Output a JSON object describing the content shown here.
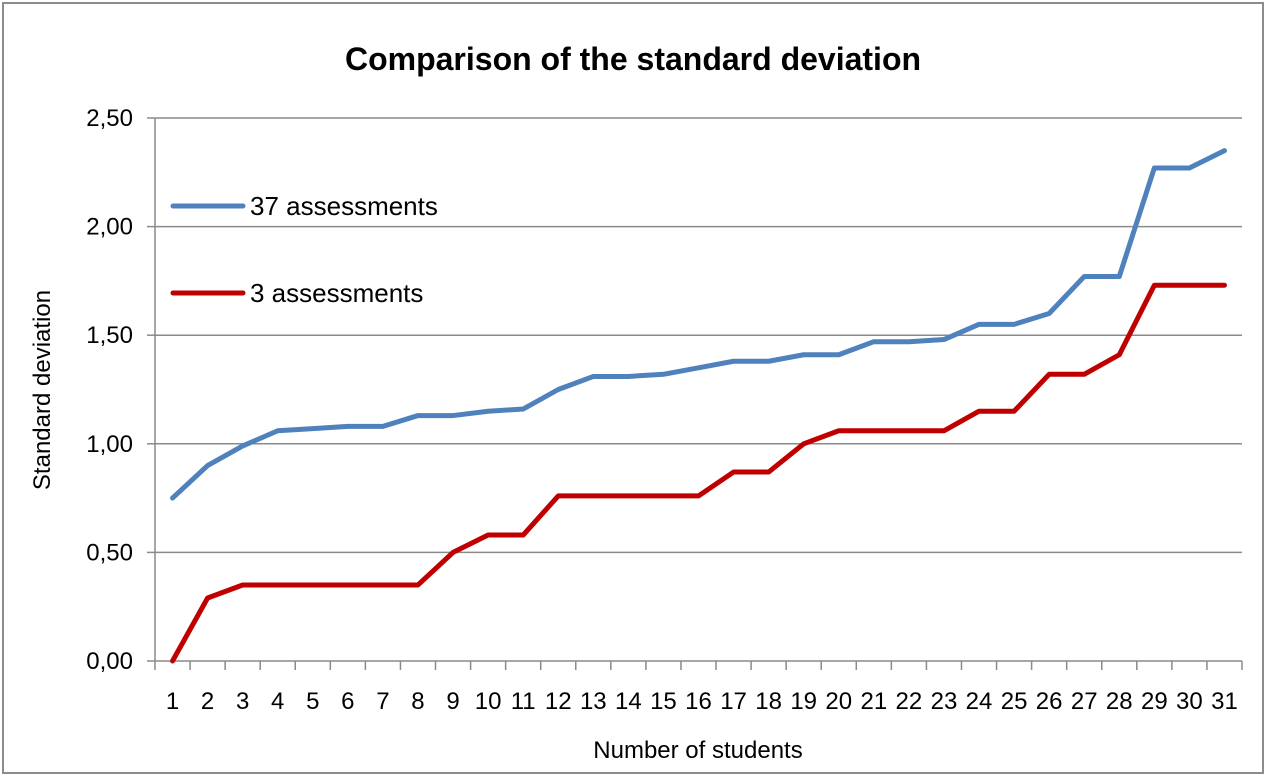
{
  "chart_data": {
    "type": "line",
    "title": "Comparison of the standard deviation",
    "xlabel": "Number of students",
    "ylabel": "Standard deviation",
    "ylim": [
      0,
      2.5
    ],
    "y_ticks": [
      "0,00",
      "0,50",
      "1,00",
      "1,50",
      "2,00",
      "2,50"
    ],
    "y_tick_values": [
      0,
      0.5,
      1.0,
      1.5,
      2.0,
      2.5
    ],
    "categories": [
      "1",
      "2",
      "3",
      "4",
      "5",
      "6",
      "7",
      "8",
      "9",
      "10",
      "11",
      "12",
      "13",
      "14",
      "15",
      "16",
      "17",
      "18",
      "19",
      "20",
      "21",
      "22",
      "23",
      "24",
      "25",
      "26",
      "27",
      "28",
      "29",
      "30",
      "31"
    ],
    "grid": true,
    "legend_position": "left",
    "series": [
      {
        "name": "37 assessments",
        "color": "#4f81bd",
        "values": [
          0.75,
          0.9,
          0.99,
          1.06,
          1.07,
          1.08,
          1.08,
          1.13,
          1.13,
          1.15,
          1.16,
          1.25,
          1.31,
          1.31,
          1.32,
          1.35,
          1.38,
          1.38,
          1.41,
          1.41,
          1.47,
          1.47,
          1.48,
          1.55,
          1.55,
          1.6,
          1.77,
          1.77,
          2.27,
          2.27,
          2.35
        ]
      },
      {
        "name": "3 assessments",
        "color": "#c00000",
        "values": [
          0.0,
          0.29,
          0.35,
          0.35,
          0.35,
          0.35,
          0.35,
          0.35,
          0.5,
          0.58,
          0.58,
          0.76,
          0.76,
          0.76,
          0.76,
          0.76,
          0.87,
          0.87,
          1.0,
          1.06,
          1.06,
          1.06,
          1.06,
          1.15,
          1.15,
          1.32,
          1.32,
          1.41,
          1.73,
          1.73,
          1.73
        ]
      }
    ]
  }
}
